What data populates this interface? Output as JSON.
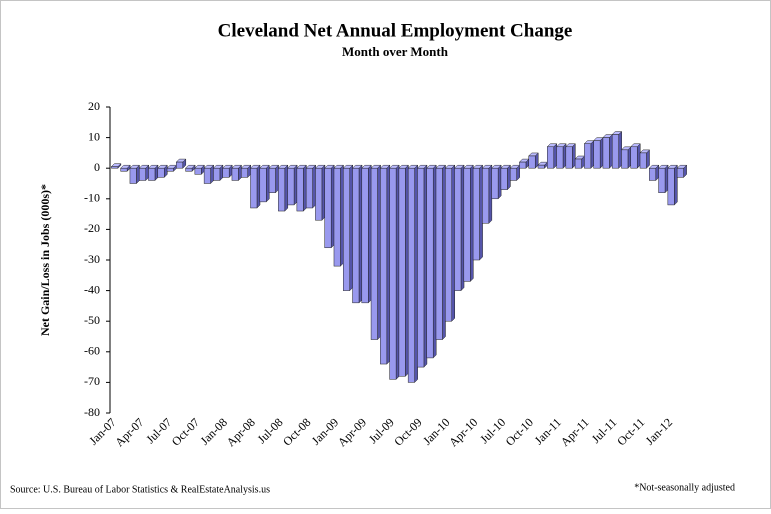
{
  "chart_data": {
    "type": "bar",
    "title": "Cleveland Net Annual Employment Change",
    "subtitle": "Month over Month",
    "y_label": "Net Gain/Loss in Jobs (000s)*",
    "source": "Source: U.S. Bureau of Labor Statistics & RealEstateAnalysis.us",
    "note": "*Not-seasonally adjusted",
    "categories": [
      "Jan-07",
      null,
      null,
      "Apr-07",
      null,
      null,
      "Jul-07",
      null,
      null,
      "Oct-07",
      null,
      null,
      "Jan-08",
      null,
      null,
      "Apr-08",
      null,
      null,
      "Jul-08",
      null,
      null,
      "Oct-08",
      null,
      null,
      "Jan-09",
      null,
      null,
      "Apr-09",
      null,
      null,
      "Jul-09",
      null,
      null,
      "Oct-09",
      null,
      null,
      "Jan-10",
      null,
      null,
      "Apr-10",
      null,
      null,
      "Jul-10",
      null,
      null,
      "Oct-10",
      null,
      null,
      "Jan-11",
      null,
      null,
      "Apr-11",
      null,
      null,
      "Jul-11",
      null,
      null,
      "Oct-11",
      null,
      null,
      "Jan-12",
      null
    ],
    "values": [
      0.5,
      -1,
      -5,
      -4,
      -4,
      -3,
      -1,
      2,
      -1,
      -2,
      -5,
      -4,
      -3,
      -4,
      -3,
      -13,
      -11,
      -8,
      -14,
      -12,
      -14,
      -13,
      -17,
      -26,
      -32,
      -40,
      -44,
      -44,
      -56,
      -64,
      -69,
      -68,
      -70,
      -65,
      -62,
      -56,
      -50,
      -40,
      -37,
      -30,
      -18,
      -10,
      -7,
      -4,
      2,
      4,
      1,
      7,
      7,
      7,
      3,
      8,
      9,
      10,
      11,
      6,
      7,
      5,
      -4,
      -8,
      -12,
      -3
    ],
    "color": "#9999ee",
    "ylim": [
      -80,
      20
    ],
    "yticks": [
      -80,
      -70,
      -60,
      -50,
      -40,
      -30,
      -20,
      -10,
      0,
      10,
      20
    ]
  }
}
